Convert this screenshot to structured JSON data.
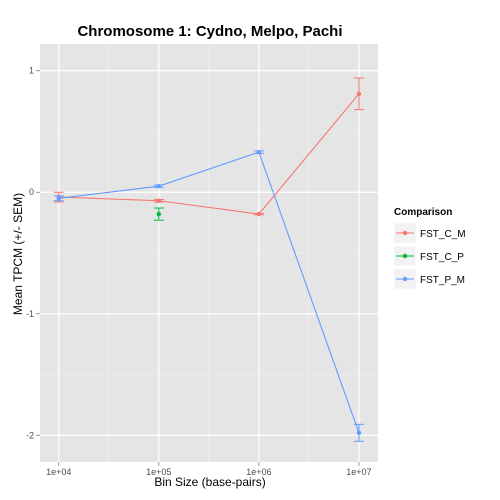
{
  "chart_data": {
    "type": "line",
    "title": "Chromosome 1: Cydno, Melpo, Pachi",
    "xlabel": "Bin Size (base-pairs)",
    "ylabel": "Mean TPCM (+/- SEM)",
    "x_scale": "log10",
    "x_ticks": [
      "1e+04",
      "1e+05",
      "1e+06",
      "1e+07"
    ],
    "y_ticks": [
      "1",
      "0",
      "-1",
      "-2"
    ],
    "ylim": [
      -2.22,
      1.22
    ],
    "xlim": [
      6500,
      15500000
    ],
    "grid": true,
    "legend_position": "right",
    "legend_title": "Comparison",
    "series": [
      {
        "name": "FST_C_M",
        "color": "#F8766D",
        "x": [
          10000,
          100000,
          1000000,
          10000000
        ],
        "y": [
          -0.04,
          -0.07,
          -0.18,
          0.81
        ],
        "sem": [
          0.04,
          0.01,
          0.005,
          0.13
        ]
      },
      {
        "name": "FST_C_P",
        "color": "#00BA38",
        "x": [
          100000
        ],
        "y": [
          -0.18
        ],
        "sem": [
          0.05
        ]
      },
      {
        "name": "FST_P_M",
        "color": "#619CFF",
        "x": [
          10000,
          100000,
          1000000,
          10000000
        ],
        "y": [
          -0.05,
          0.05,
          0.33,
          -1.98
        ],
        "sem": [
          0.02,
          0.01,
          0.01,
          0.07
        ]
      }
    ]
  }
}
